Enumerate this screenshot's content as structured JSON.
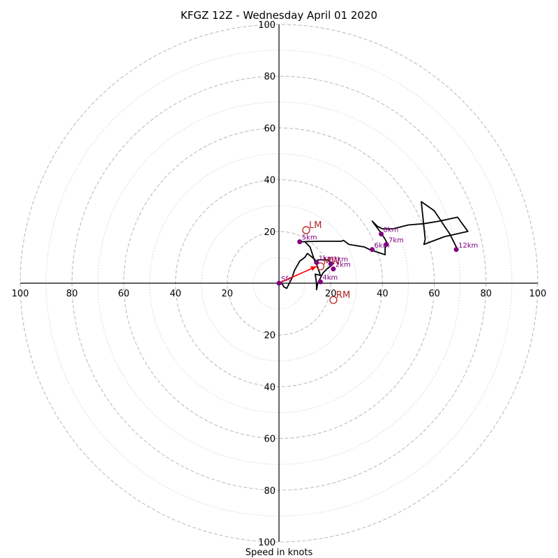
{
  "chart_data": {
    "type": "hodograph",
    "title": "KFGZ 12Z - Wednesday April 01 2020",
    "xlabel": "Speed in knots",
    "rmax": 100,
    "rings": [
      20,
      40,
      60,
      80,
      100
    ],
    "minor_rings": [
      10,
      30,
      50,
      70,
      90
    ],
    "tick_labels": [
      "20",
      "40",
      "60",
      "80",
      "100"
    ],
    "grid": true,
    "trace": [
      [
        1,
        0
      ],
      [
        2,
        -1.5
      ],
      [
        3,
        -2
      ],
      [
        5,
        2
      ],
      [
        6,
        5
      ],
      [
        8,
        8.5
      ],
      [
        10,
        10
      ],
      [
        11,
        11.5
      ],
      [
        14,
        9
      ],
      [
        15,
        6
      ],
      [
        16,
        3
      ],
      [
        14,
        3.5
      ],
      [
        14.5,
        0
      ],
      [
        14.5,
        -2.5
      ],
      [
        15,
        0
      ],
      [
        16,
        2
      ],
      [
        17,
        4
      ],
      [
        18.5,
        5.5
      ],
      [
        20.5,
        7
      ],
      [
        19,
        9
      ],
      [
        15,
        9
      ],
      [
        14,
        8
      ],
      [
        12,
        14
      ],
      [
        10,
        16
      ],
      [
        8,
        16
      ],
      [
        16,
        16.2
      ],
      [
        24,
        16.2
      ],
      [
        25,
        16.5
      ],
      [
        27,
        15
      ],
      [
        33,
        14
      ],
      [
        35,
        13
      ],
      [
        38,
        12
      ],
      [
        41,
        11
      ],
      [
        41,
        14
      ],
      [
        42,
        15
      ],
      [
        41,
        17
      ],
      [
        39,
        20
      ],
      [
        36,
        24
      ],
      [
        38,
        22
      ],
      [
        40,
        21
      ],
      [
        44,
        21
      ],
      [
        50,
        22.5
      ],
      [
        56,
        23
      ],
      [
        62,
        24
      ],
      [
        69,
        25.5
      ],
      [
        73,
        20
      ],
      [
        64,
        18
      ],
      [
        56,
        15
      ],
      [
        56.5,
        17
      ],
      [
        55,
        31.5
      ],
      [
        60,
        28
      ],
      [
        64,
        22
      ],
      [
        66,
        19
      ],
      [
        69,
        13
      ]
    ],
    "height_labels": [
      {
        "label": "Sfc",
        "u": 0,
        "v": 0
      },
      {
        "label": "1km",
        "u": 14.5,
        "v": 8
      },
      {
        "label": "2km",
        "u": 21,
        "v": 5.5
      },
      {
        "label": "3km",
        "u": 20,
        "v": 7.5
      },
      {
        "label": "4km",
        "u": 16,
        "v": 0.5
      },
      {
        "label": "5km",
        "u": 8,
        "v": 16
      },
      {
        "label": "6km",
        "u": 36,
        "v": 13
      },
      {
        "label": "7km",
        "u": 41.5,
        "v": 15
      },
      {
        "label": "8km",
        "u": 39.5,
        "v": 19
      },
      {
        "label": "12km",
        "u": 68.5,
        "v": 13
      }
    ],
    "storm_motions": [
      {
        "label": "LM",
        "u": 10.5,
        "v": 20.5
      },
      {
        "label": "RM",
        "u": 21,
        "v": -6.5
      },
      {
        "label": "MW",
        "u": 16,
        "v": 6.5
      }
    ],
    "shear_vector": {
      "from": [
        0,
        0
      ],
      "to": [
        14.5,
        6.5
      ],
      "color": "#ff0000"
    },
    "colors": {
      "trace": "#000000",
      "height_points": "#800080",
      "storm_motion": "#b22222",
      "grid": "#bdbdbd"
    }
  }
}
